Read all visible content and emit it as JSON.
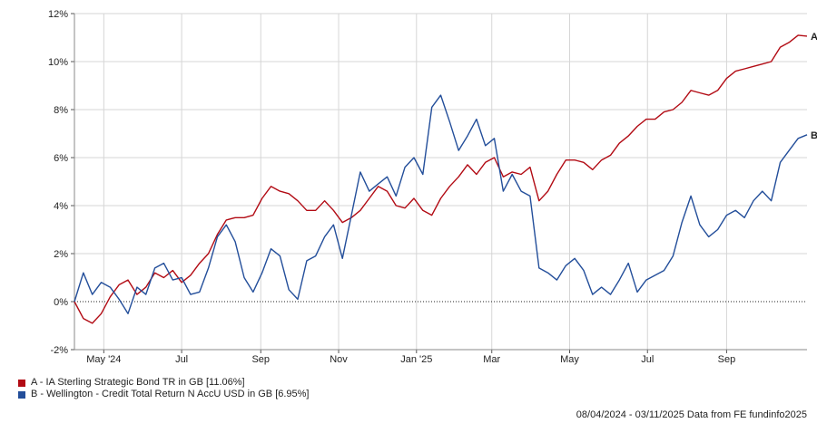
{
  "chart_data": {
    "type": "line",
    "ylim": [
      -2,
      12
    ],
    "y_ticks": [
      "-2%",
      "0%",
      "2%",
      "4%",
      "6%",
      "8%",
      "10%",
      "12%"
    ],
    "x_ticks": [
      "May '24",
      "Jul",
      "Sep",
      "Nov",
      "Jan '25",
      "Mar",
      "May",
      "Jul",
      "Sep"
    ],
    "x_range": [
      "2024-04-08",
      "2025-11-03"
    ],
    "grid": true,
    "zero_line": "dotted",
    "series": [
      {
        "name": "A",
        "legend": "A - IA Sterling Strategic Bond TR in GB [11.06%]",
        "color": "#b20b14",
        "points": [
          [
            "2024-04-08",
            0.0
          ],
          [
            "2024-04-15",
            -0.7
          ],
          [
            "2024-04-22",
            -0.9
          ],
          [
            "2024-04-29",
            -0.5
          ],
          [
            "2024-05-06",
            0.2
          ],
          [
            "2024-05-13",
            0.7
          ],
          [
            "2024-05-20",
            0.9
          ],
          [
            "2024-05-27",
            0.3
          ],
          [
            "2024-06-03",
            0.6
          ],
          [
            "2024-06-10",
            1.2
          ],
          [
            "2024-06-17",
            1.0
          ],
          [
            "2024-06-24",
            1.3
          ],
          [
            "2024-07-01",
            0.8
          ],
          [
            "2024-07-08",
            1.1
          ],
          [
            "2024-07-15",
            1.6
          ],
          [
            "2024-07-22",
            2.0
          ],
          [
            "2024-07-29",
            2.8
          ],
          [
            "2024-08-05",
            3.4
          ],
          [
            "2024-08-12",
            3.5
          ],
          [
            "2024-08-19",
            3.5
          ],
          [
            "2024-08-26",
            3.6
          ],
          [
            "2024-09-02",
            4.3
          ],
          [
            "2024-09-09",
            4.8
          ],
          [
            "2024-09-16",
            4.6
          ],
          [
            "2024-09-23",
            4.5
          ],
          [
            "2024-09-30",
            4.2
          ],
          [
            "2024-10-07",
            3.8
          ],
          [
            "2024-10-14",
            3.8
          ],
          [
            "2024-10-21",
            4.2
          ],
          [
            "2024-10-28",
            3.8
          ],
          [
            "2024-11-04",
            3.3
          ],
          [
            "2024-11-11",
            3.5
          ],
          [
            "2024-11-18",
            3.8
          ],
          [
            "2024-11-25",
            4.3
          ],
          [
            "2024-12-02",
            4.8
          ],
          [
            "2024-12-09",
            4.6
          ],
          [
            "2024-12-16",
            4.0
          ],
          [
            "2024-12-23",
            3.9
          ],
          [
            "2024-12-30",
            4.3
          ],
          [
            "2025-01-06",
            3.8
          ],
          [
            "2025-01-13",
            3.6
          ],
          [
            "2025-01-20",
            4.3
          ],
          [
            "2025-01-27",
            4.8
          ],
          [
            "2025-02-03",
            5.2
          ],
          [
            "2025-02-10",
            5.7
          ],
          [
            "2025-02-17",
            5.3
          ],
          [
            "2025-02-24",
            5.8
          ],
          [
            "2025-03-03",
            6.0
          ],
          [
            "2025-03-10",
            5.2
          ],
          [
            "2025-03-17",
            5.4
          ],
          [
            "2025-03-24",
            5.3
          ],
          [
            "2025-03-31",
            5.6
          ],
          [
            "2025-04-07",
            4.2
          ],
          [
            "2025-04-14",
            4.6
          ],
          [
            "2025-04-21",
            5.3
          ],
          [
            "2025-04-28",
            5.9
          ],
          [
            "2025-05-05",
            5.9
          ],
          [
            "2025-05-12",
            5.8
          ],
          [
            "2025-05-19",
            5.5
          ],
          [
            "2025-05-26",
            5.9
          ],
          [
            "2025-06-02",
            6.1
          ],
          [
            "2025-06-09",
            6.6
          ],
          [
            "2025-06-16",
            6.9
          ],
          [
            "2025-06-23",
            7.3
          ],
          [
            "2025-06-30",
            7.6
          ],
          [
            "2025-07-07",
            7.6
          ],
          [
            "2025-07-14",
            7.9
          ],
          [
            "2025-07-21",
            8.0
          ],
          [
            "2025-07-28",
            8.3
          ],
          [
            "2025-08-04",
            8.8
          ],
          [
            "2025-08-11",
            8.7
          ],
          [
            "2025-08-18",
            8.6
          ],
          [
            "2025-08-25",
            8.8
          ],
          [
            "2025-09-01",
            9.3
          ],
          [
            "2025-09-08",
            9.6
          ],
          [
            "2025-09-15",
            9.7
          ],
          [
            "2025-09-22",
            9.8
          ],
          [
            "2025-09-29",
            9.9
          ],
          [
            "2025-10-06",
            10.0
          ],
          [
            "2025-10-13",
            10.6
          ],
          [
            "2025-10-20",
            10.8
          ],
          [
            "2025-10-27",
            11.1
          ],
          [
            "2025-11-03",
            11.06
          ]
        ]
      },
      {
        "name": "B",
        "legend": "B - Wellington - Credit Total Return N AccU USD in GB [6.95%]",
        "color": "#234e9a",
        "points": [
          [
            "2024-04-08",
            0.0
          ],
          [
            "2024-04-15",
            1.2
          ],
          [
            "2024-04-22",
            0.3
          ],
          [
            "2024-04-29",
            0.8
          ],
          [
            "2024-05-06",
            0.6
          ],
          [
            "2024-05-13",
            0.1
          ],
          [
            "2024-05-20",
            -0.5
          ],
          [
            "2024-05-27",
            0.6
          ],
          [
            "2024-06-03",
            0.3
          ],
          [
            "2024-06-10",
            1.4
          ],
          [
            "2024-06-17",
            1.6
          ],
          [
            "2024-06-24",
            0.9
          ],
          [
            "2024-07-01",
            1.0
          ],
          [
            "2024-07-08",
            0.3
          ],
          [
            "2024-07-15",
            0.4
          ],
          [
            "2024-07-22",
            1.4
          ],
          [
            "2024-07-29",
            2.7
          ],
          [
            "2024-08-05",
            3.2
          ],
          [
            "2024-08-12",
            2.5
          ],
          [
            "2024-08-19",
            1.0
          ],
          [
            "2024-08-26",
            0.4
          ],
          [
            "2024-09-02",
            1.2
          ],
          [
            "2024-09-09",
            2.2
          ],
          [
            "2024-09-16",
            1.9
          ],
          [
            "2024-09-23",
            0.5
          ],
          [
            "2024-09-30",
            0.1
          ],
          [
            "2024-10-07",
            1.7
          ],
          [
            "2024-10-14",
            1.9
          ],
          [
            "2024-10-21",
            2.7
          ],
          [
            "2024-10-28",
            3.2
          ],
          [
            "2024-11-04",
            1.8
          ],
          [
            "2024-11-11",
            3.6
          ],
          [
            "2024-11-18",
            5.4
          ],
          [
            "2024-11-25",
            4.6
          ],
          [
            "2024-12-02",
            4.9
          ],
          [
            "2024-12-09",
            5.2
          ],
          [
            "2024-12-16",
            4.4
          ],
          [
            "2024-12-23",
            5.6
          ],
          [
            "2024-12-30",
            6.0
          ],
          [
            "2025-01-06",
            5.3
          ],
          [
            "2025-01-13",
            8.1
          ],
          [
            "2025-01-20",
            8.6
          ],
          [
            "2025-01-27",
            7.5
          ],
          [
            "2025-02-03",
            6.3
          ],
          [
            "2025-02-10",
            6.9
          ],
          [
            "2025-02-17",
            7.6
          ],
          [
            "2025-02-24",
            6.5
          ],
          [
            "2025-03-03",
            6.8
          ],
          [
            "2025-03-10",
            4.6
          ],
          [
            "2025-03-17",
            5.3
          ],
          [
            "2025-03-24",
            4.6
          ],
          [
            "2025-03-31",
            4.4
          ],
          [
            "2025-04-07",
            1.4
          ],
          [
            "2025-04-14",
            1.2
          ],
          [
            "2025-04-21",
            0.9
          ],
          [
            "2025-04-28",
            1.5
          ],
          [
            "2025-05-05",
            1.8
          ],
          [
            "2025-05-12",
            1.3
          ],
          [
            "2025-05-19",
            0.3
          ],
          [
            "2025-05-26",
            0.6
          ],
          [
            "2025-06-02",
            0.3
          ],
          [
            "2025-06-09",
            0.9
          ],
          [
            "2025-06-16",
            1.6
          ],
          [
            "2025-06-23",
            0.4
          ],
          [
            "2025-06-30",
            0.9
          ],
          [
            "2025-07-07",
            1.1
          ],
          [
            "2025-07-14",
            1.3
          ],
          [
            "2025-07-21",
            1.9
          ],
          [
            "2025-07-28",
            3.3
          ],
          [
            "2025-08-04",
            4.4
          ],
          [
            "2025-08-11",
            3.2
          ],
          [
            "2025-08-18",
            2.7
          ],
          [
            "2025-08-25",
            3.0
          ],
          [
            "2025-09-01",
            3.6
          ],
          [
            "2025-09-08",
            3.8
          ],
          [
            "2025-09-15",
            3.5
          ],
          [
            "2025-09-22",
            4.2
          ],
          [
            "2025-09-29",
            4.6
          ],
          [
            "2025-10-06",
            4.2
          ],
          [
            "2025-10-13",
            5.8
          ],
          [
            "2025-10-20",
            6.3
          ],
          [
            "2025-10-27",
            6.8
          ],
          [
            "2025-11-03",
            6.95
          ]
        ]
      }
    ]
  },
  "footer": "08/04/2024 - 03/11/2025 Data from FE fundinfo2025"
}
